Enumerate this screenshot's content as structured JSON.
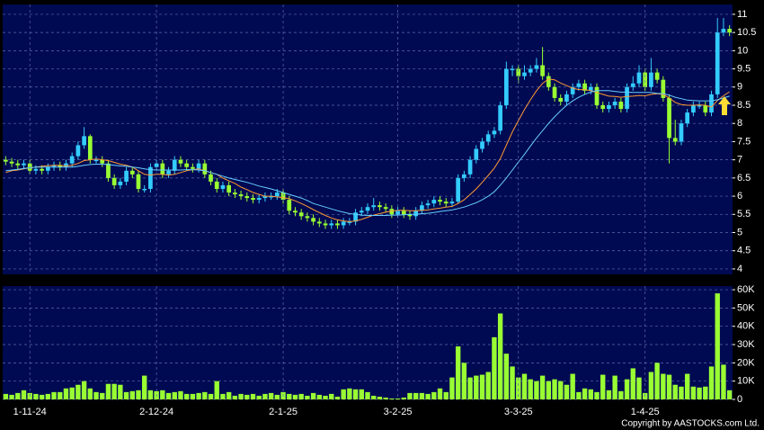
{
  "chart_data": [
    {
      "type": "candlestick",
      "up_color": "#33ccff",
      "down_color": "#99ff33",
      "ylim": [
        3.85,
        11.27
      ],
      "yticks": [
        4,
        4.5,
        5,
        5.5,
        6,
        6.5,
        7,
        7.5,
        8,
        8.5,
        9,
        9.5,
        10,
        10.5,
        11
      ],
      "grid": true,
      "open": [
        7.0,
        6.95,
        6.9,
        6.85,
        6.9,
        6.7,
        6.75,
        6.7,
        6.8,
        6.85,
        6.8,
        6.9,
        7.1,
        7.4,
        7.65,
        7.0,
        7.0,
        6.9,
        6.5,
        6.3,
        6.4,
        6.7,
        6.6,
        6.2,
        6.2,
        6.8,
        6.9,
        6.6,
        6.7,
        7.0,
        6.9,
        6.8,
        6.75,
        6.9,
        6.6,
        6.4,
        6.2,
        6.3,
        6.1,
        6.05,
        6.0,
        5.95,
        5.9,
        5.95,
        6.0,
        6.0,
        6.1,
        5.9,
        5.6,
        5.55,
        5.45,
        5.4,
        5.3,
        5.25,
        5.2,
        5.25,
        5.2,
        5.3,
        5.3,
        5.55,
        5.6,
        5.7,
        5.75,
        5.7,
        5.65,
        5.5,
        5.6,
        5.5,
        5.45,
        5.6,
        5.75,
        5.8,
        5.9,
        5.85,
        5.8,
        5.85,
        6.5,
        6.6,
        7.0,
        7.3,
        7.5,
        7.7,
        7.8,
        8.5,
        9.5,
        9.5,
        9.3,
        9.4,
        9.5,
        9.6,
        9.3,
        9.0,
        8.7,
        8.6,
        8.8,
        9.0,
        9.1,
        8.9,
        9.0,
        8.5,
        8.4,
        8.5,
        8.6,
        8.4,
        9.0,
        9.1,
        9.4,
        9.0,
        9.4,
        9.2,
        8.7,
        7.6,
        7.5,
        8.0,
        8.3,
        8.5,
        8.5,
        8.3,
        8.8,
        10.5,
        10.6
      ],
      "high": [
        7.1,
        7.05,
        7.0,
        7.0,
        7.0,
        6.85,
        6.85,
        6.9,
        6.95,
        6.95,
        7.0,
        7.2,
        7.5,
        7.9,
        7.7,
        7.1,
        7.1,
        7.0,
        6.6,
        6.5,
        6.8,
        6.8,
        6.7,
        6.3,
        6.9,
        7.0,
        7.0,
        6.8,
        7.1,
        7.1,
        7.0,
        6.9,
        7.0,
        7.0,
        6.7,
        6.5,
        6.4,
        6.4,
        6.2,
        6.15,
        6.1,
        6.05,
        6.05,
        6.1,
        6.1,
        6.2,
        6.2,
        6.0,
        5.7,
        5.65,
        5.55,
        5.5,
        5.4,
        5.35,
        5.35,
        5.35,
        5.4,
        5.4,
        5.65,
        5.7,
        5.8,
        5.95,
        5.85,
        5.8,
        5.75,
        5.7,
        5.7,
        5.6,
        5.7,
        5.85,
        5.9,
        6.0,
        6.0,
        5.95,
        5.95,
        6.6,
        6.7,
        7.1,
        7.4,
        7.6,
        7.8,
        7.9,
        8.6,
        9.7,
        9.6,
        9.6,
        9.6,
        9.6,
        9.8,
        10.1,
        9.4,
        9.1,
        8.8,
        8.9,
        9.1,
        9.2,
        9.2,
        9.1,
        9.1,
        8.6,
        8.6,
        8.7,
        8.7,
        9.1,
        9.3,
        9.6,
        9.5,
        9.8,
        9.5,
        9.3,
        8.8,
        8.1,
        8.1,
        8.4,
        8.6,
        8.6,
        8.6,
        8.9,
        10.9,
        10.9,
        10.7
      ],
      "low": [
        6.85,
        6.8,
        6.75,
        6.75,
        6.6,
        6.6,
        6.6,
        6.6,
        6.7,
        6.7,
        6.7,
        6.8,
        7.0,
        7.3,
        6.9,
        6.9,
        6.8,
        6.4,
        6.2,
        6.2,
        6.3,
        6.5,
        6.1,
        6.1,
        6.1,
        6.7,
        6.5,
        6.5,
        6.6,
        6.8,
        6.7,
        6.65,
        6.65,
        6.5,
        6.3,
        6.1,
        6.1,
        6.0,
        5.95,
        5.9,
        5.85,
        5.8,
        5.8,
        5.85,
        5.9,
        5.9,
        5.8,
        5.5,
        5.45,
        5.35,
        5.3,
        5.2,
        5.15,
        5.1,
        5.1,
        5.1,
        5.1,
        5.2,
        5.2,
        5.45,
        5.5,
        5.6,
        5.6,
        5.55,
        5.4,
        5.4,
        5.4,
        5.35,
        5.35,
        5.5,
        5.65,
        5.7,
        5.75,
        5.7,
        5.7,
        5.8,
        6.4,
        6.5,
        6.9,
        7.2,
        7.4,
        7.6,
        7.7,
        8.4,
        9.3,
        9.1,
        9.2,
        9.3,
        9.4,
        9.2,
        8.9,
        8.6,
        8.5,
        8.5,
        8.7,
        8.9,
        8.8,
        8.8,
        8.4,
        8.3,
        8.3,
        8.4,
        8.3,
        8.3,
        8.9,
        9.0,
        8.9,
        8.9,
        9.1,
        8.6,
        6.9,
        7.4,
        7.4,
        7.9,
        8.2,
        8.4,
        8.2,
        8.2,
        8.7,
        10.4,
        10.4
      ],
      "close": [
        6.95,
        6.9,
        6.85,
        6.9,
        6.7,
        6.75,
        6.7,
        6.8,
        6.85,
        6.8,
        6.9,
        7.1,
        7.4,
        7.65,
        7.0,
        7.0,
        6.9,
        6.5,
        6.3,
        6.4,
        6.7,
        6.6,
        6.2,
        6.2,
        6.8,
        6.9,
        6.6,
        6.7,
        7.0,
        6.9,
        6.8,
        6.75,
        6.9,
        6.6,
        6.4,
        6.2,
        6.3,
        6.1,
        6.05,
        6.0,
        5.95,
        5.9,
        5.95,
        6.0,
        6.0,
        6.1,
        5.9,
        5.6,
        5.55,
        5.45,
        5.4,
        5.3,
        5.25,
        5.2,
        5.25,
        5.2,
        5.3,
        5.3,
        5.55,
        5.6,
        5.7,
        5.75,
        5.7,
        5.65,
        5.5,
        5.6,
        5.5,
        5.45,
        5.6,
        5.75,
        5.8,
        5.9,
        5.85,
        5.8,
        5.85,
        6.5,
        6.6,
        7.0,
        7.3,
        7.5,
        7.7,
        7.8,
        8.5,
        9.5,
        9.5,
        9.3,
        9.4,
        9.5,
        9.6,
        9.3,
        9.0,
        8.7,
        8.6,
        8.8,
        9.0,
        9.1,
        8.9,
        9.0,
        8.5,
        8.4,
        8.5,
        8.6,
        8.4,
        9.0,
        9.1,
        9.4,
        9.0,
        9.4,
        9.2,
        8.7,
        7.6,
        7.5,
        8.0,
        8.3,
        8.5,
        8.5,
        8.3,
        8.8,
        10.5,
        10.6,
        10.5
      ],
      "lines": [
        {
          "color": "#ff9933",
          "values": [
            6.65,
            6.7,
            6.72,
            6.75,
            6.78,
            6.8,
            6.82,
            6.84,
            6.85,
            6.85,
            6.83,
            6.85,
            6.9,
            6.98,
            7.0,
            7.02,
            7.0,
            6.98,
            6.93,
            6.88,
            6.85,
            6.8,
            6.7,
            6.6,
            6.58,
            6.6,
            6.6,
            6.58,
            6.6,
            6.65,
            6.7,
            6.73,
            6.75,
            6.7,
            6.65,
            6.6,
            6.5,
            6.42,
            6.35,
            6.25,
            6.18,
            6.1,
            6.05,
            6.0,
            6.0,
            5.98,
            5.96,
            5.93,
            5.87,
            5.8,
            5.72,
            5.63,
            5.55,
            5.47,
            5.4,
            5.35,
            5.32,
            5.3,
            5.32,
            5.36,
            5.42,
            5.48,
            5.52,
            5.56,
            5.59,
            5.61,
            5.61,
            5.6,
            5.6,
            5.61,
            5.62,
            5.65,
            5.67,
            5.7,
            5.72,
            5.8,
            5.9,
            6.05,
            6.2,
            6.38,
            6.57,
            6.77,
            7.03,
            7.4,
            7.77,
            8.08,
            8.38,
            8.65,
            8.9,
            9.1,
            9.22,
            9.2,
            9.11,
            9.04,
            8.97,
            8.93,
            8.93,
            8.9,
            8.85,
            8.8,
            8.75,
            8.74,
            8.72,
            8.74,
            8.75,
            8.77,
            8.76,
            8.8,
            8.82,
            8.8,
            8.7,
            8.58,
            8.52,
            8.5,
            8.5,
            8.51,
            8.5,
            8.45,
            8.63,
            8.76,
            8.87
          ]
        },
        {
          "color": "#66ccff",
          "values": [
            6.7,
            6.72,
            6.74,
            6.76,
            6.78,
            6.8,
            6.8,
            6.8,
            6.8,
            6.8,
            6.8,
            6.8,
            6.82,
            6.85,
            6.87,
            6.88,
            6.88,
            6.87,
            6.85,
            6.83,
            6.82,
            6.8,
            6.78,
            6.75,
            6.73,
            6.72,
            6.72,
            6.72,
            6.72,
            6.72,
            6.73,
            6.73,
            6.72,
            6.7,
            6.65,
            6.6,
            6.55,
            6.5,
            6.46,
            6.42,
            6.38,
            6.33,
            6.28,
            6.24,
            6.2,
            6.15,
            6.1,
            6.05,
            6.0,
            5.95,
            5.88,
            5.8,
            5.75,
            5.7,
            5.65,
            5.6,
            5.56,
            5.52,
            5.5,
            5.48,
            5.47,
            5.47,
            5.47,
            5.47,
            5.48,
            5.48,
            5.49,
            5.5,
            5.5,
            5.52,
            5.53,
            5.55,
            5.58,
            5.6,
            5.62,
            5.66,
            5.7,
            5.76,
            5.82,
            5.9,
            6.0,
            6.12,
            6.3,
            6.5,
            6.72,
            6.94,
            7.15,
            7.38,
            7.6,
            7.8,
            8.0,
            8.18,
            8.35,
            8.5,
            8.62,
            8.72,
            8.8,
            8.86,
            8.9,
            8.9,
            8.9,
            8.88,
            8.86,
            8.86,
            8.85,
            8.85,
            8.85,
            8.85,
            8.83,
            8.82,
            8.78,
            8.72,
            8.68,
            8.64,
            8.63,
            8.62,
            8.62,
            8.62,
            8.65,
            8.7,
            8.75
          ]
        }
      ]
    },
    {
      "type": "bar",
      "color": "#99ff33",
      "ylim": [
        0,
        62000
      ],
      "yticks": [
        0,
        {
          "value": 10000,
          "label": "10K"
        },
        {
          "value": 20000,
          "label": "20K"
        },
        {
          "value": 30000,
          "label": "30K"
        },
        {
          "value": 40000,
          "label": "40K"
        },
        {
          "value": 50000,
          "label": "50K"
        },
        {
          "value": 60000,
          "label": "60K"
        }
      ],
      "grid": true,
      "categories": [
        null,
        null,
        null,
        null,
        "1-11-24",
        null,
        null,
        null,
        null,
        null,
        null,
        null,
        null,
        null,
        null,
        null,
        null,
        null,
        null,
        null,
        null,
        null,
        null,
        null,
        null,
        "2-12-24",
        null,
        null,
        null,
        null,
        null,
        null,
        null,
        null,
        null,
        null,
        null,
        null,
        null,
        null,
        null,
        null,
        null,
        null,
        null,
        null,
        "2-1-25",
        null,
        null,
        null,
        null,
        null,
        null,
        null,
        null,
        null,
        null,
        null,
        null,
        null,
        null,
        null,
        null,
        null,
        null,
        "3-2-25",
        null,
        null,
        null,
        null,
        null,
        null,
        null,
        null,
        null,
        null,
        null,
        null,
        null,
        null,
        null,
        null,
        null,
        null,
        null,
        "3-3-25",
        null,
        null,
        null,
        null,
        null,
        null,
        null,
        null,
        null,
        null,
        null,
        null,
        null,
        null,
        null,
        null,
        null,
        null,
        null,
        null,
        "1-4-25",
        null,
        null,
        null,
        null,
        null,
        null,
        null,
        null,
        null,
        null,
        null,
        null,
        null,
        null
      ],
      "values": [
        3000,
        2500,
        3500,
        5000,
        3500,
        3000,
        2500,
        3000,
        4000,
        4000,
        6000,
        6500,
        8000,
        10000,
        6000,
        4000,
        3500,
        8500,
        8500,
        8000,
        4000,
        4500,
        5000,
        13000,
        5000,
        4500,
        5000,
        3500,
        4000,
        4500,
        3000,
        3000,
        3500,
        4000,
        3000,
        10000,
        3000,
        4000,
        2000,
        3000,
        2500,
        3000,
        2000,
        3000,
        3500,
        2500,
        4000,
        3000,
        2500,
        3000,
        2000,
        3500,
        2500,
        2000,
        3000,
        1500,
        5500,
        6000,
        5500,
        5500,
        4000,
        2000,
        1500,
        1000,
        500,
        500,
        1000,
        3500,
        3500,
        3500,
        3000,
        4000,
        6000,
        4000,
        12000,
        29000,
        20000,
        12000,
        13000,
        13500,
        15000,
        34000,
        47000,
        25000,
        18000,
        12000,
        14000,
        11000,
        10000,
        13000,
        10000,
        11000,
        10000,
        8000,
        14000,
        4000,
        6000,
        5500,
        4000,
        13500,
        5000,
        13000,
        4500,
        11000,
        17000,
        12000,
        3500,
        15000,
        20000,
        14000,
        13500,
        8000,
        7000,
        14000,
        7000,
        6500,
        7000,
        18000,
        58000,
        19000,
        5000
      ]
    }
  ],
  "copyright": "Copyright by AASTOCKS.com Ltd."
}
